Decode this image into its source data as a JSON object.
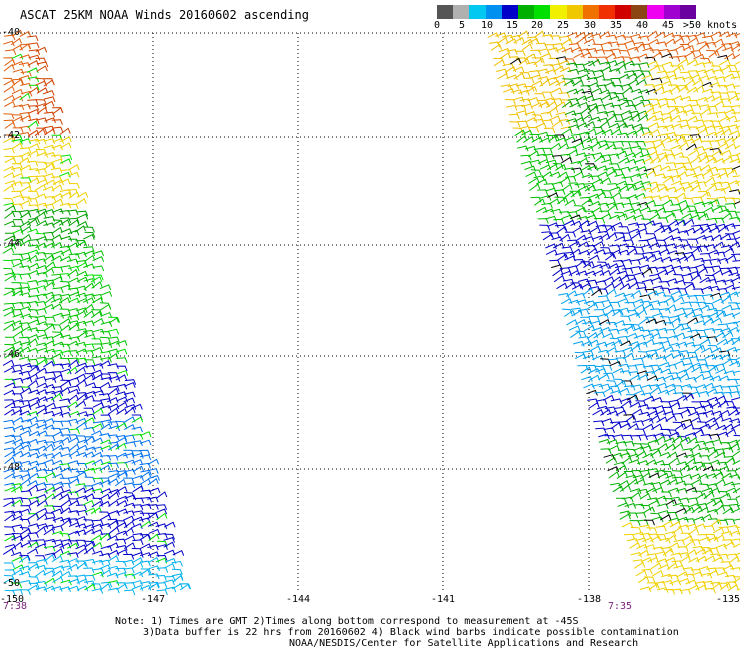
{
  "title": "ASCAT 25KM NOAA Winds 20160602 ascending",
  "colorbar": {
    "colors": [
      "#555555",
      "#b0b0b0",
      "#00c8f0",
      "#0090f0",
      "#0000c8",
      "#00b000",
      "#00e000",
      "#f0f000",
      "#f0c800",
      "#f07000",
      "#f03000",
      "#d00000",
      "#8b4513",
      "#f000f0",
      "#a000d0",
      "#6a00a0"
    ],
    "labels": [
      "0",
      "5",
      "10",
      "15",
      "20",
      "25",
      "30",
      "35",
      "40",
      "45",
      ">50 knots"
    ]
  },
  "axes": {
    "y_labels": [
      "-40",
      "-42",
      "-44",
      "-46",
      "-48",
      "-50"
    ],
    "x_labels": [
      "-150",
      "-147",
      "-144",
      "-141",
      "-138",
      "-135"
    ]
  },
  "swath_times": {
    "left": "7:38",
    "right": "7:35"
  },
  "notes": {
    "line1": "Note: 1) Times are GMT 2)Times along bottom correspond to measurement at -45S",
    "line2": "3)Data buffer is 22 hrs from 20160602 4) Black wind barbs indicate possible contamination",
    "line3": "NOAA/NESDIS/Center for Satellite Applications and Research"
  }
}
